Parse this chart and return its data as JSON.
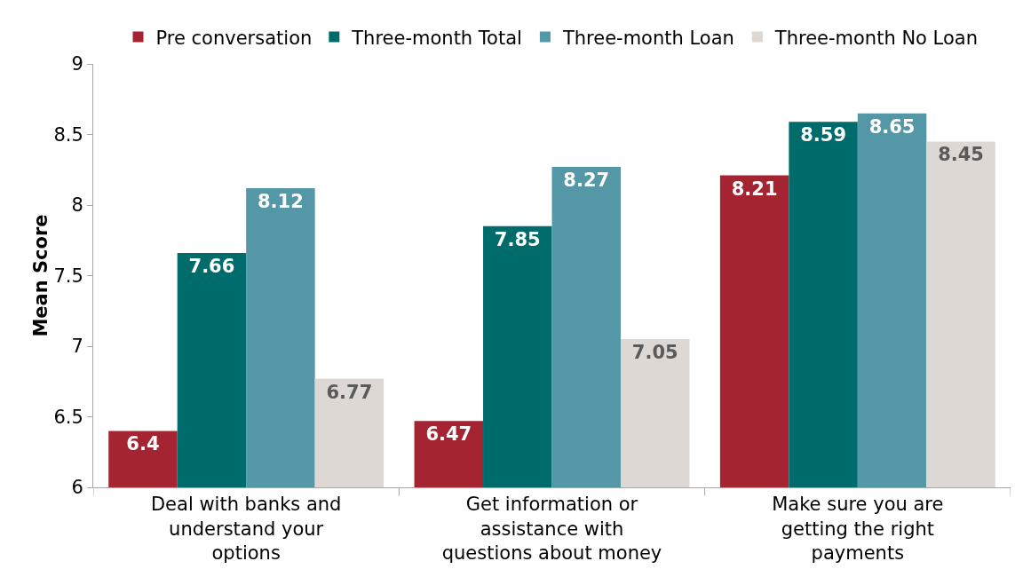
{
  "chart_data": {
    "type": "bar",
    "ylabel": "Mean Score",
    "categories": [
      "Deal with banks and understand your options",
      "Get information or assistance with questions about money",
      "Make sure you are getting the right payments"
    ],
    "series": [
      {
        "name": "Pre conversation",
        "color": "#a52431",
        "values": [
          6.4,
          6.47,
          8.21
        ]
      },
      {
        "name": "Three-month Total",
        "color": "#006b6b",
        "values": [
          7.66,
          7.85,
          8.59
        ]
      },
      {
        "name": "Three-month Loan",
        "color": "#5497a7",
        "values": [
          8.12,
          8.27,
          8.65
        ]
      },
      {
        "name": "Three-month No Loan",
        "color": "#ddd8d3",
        "values": [
          6.77,
          7.05,
          8.45
        ]
      }
    ],
    "ylim": [
      6,
      9
    ],
    "yticks": [
      6,
      6.5,
      7,
      7.5,
      8,
      8.5,
      9
    ],
    "grid": false,
    "legend": "top",
    "data_labels": true
  }
}
